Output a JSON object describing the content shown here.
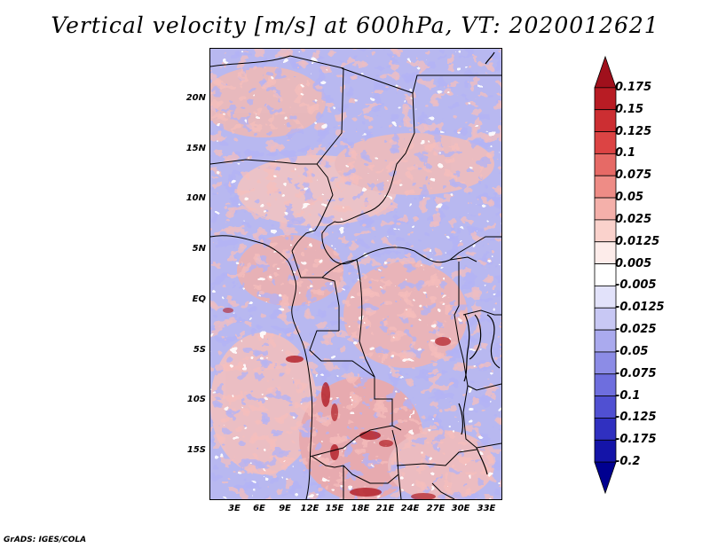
{
  "title": "Vertical velocity [m/s] at 600hPa, VT: 2020012621",
  "footer": "GrADS: IGES/COLA",
  "map": {
    "variable": "Vertical velocity",
    "units": "m/s",
    "level": "600hPa",
    "valid_time": "2020012621",
    "lat_labels": [
      "20N",
      "15N",
      "10N",
      "5N",
      "EQ",
      "5S",
      "10S",
      "15S"
    ],
    "lon_labels": [
      "3E",
      "6E",
      "9E",
      "12E",
      "15E",
      "18E",
      "21E",
      "24E",
      "27E",
      "30E",
      "33E"
    ]
  },
  "colorbar": {
    "labels": [
      "0.175",
      "0.15",
      "0.125",
      "0.1",
      "0.075",
      "0.05",
      "0.025",
      "0.0125",
      "0.005",
      "-0.005",
      "-0.0125",
      "-0.025",
      "-0.05",
      "-0.075",
      "-0.1",
      "-0.125",
      "-0.175",
      "-0.2"
    ],
    "colors": [
      "#a0101c",
      "#b81c24",
      "#cc2e32",
      "#dc4444",
      "#e66a66",
      "#ee8c86",
      "#f4b0aa",
      "#fad2cc",
      "#fdecea",
      "#ffffff",
      "#e2e2fa",
      "#c8c8f4",
      "#aaaaee",
      "#8c8ce6",
      "#6e6ede",
      "#5050d2",
      "#3030c0",
      "#1414a8",
      "#000090"
    ]
  }
}
